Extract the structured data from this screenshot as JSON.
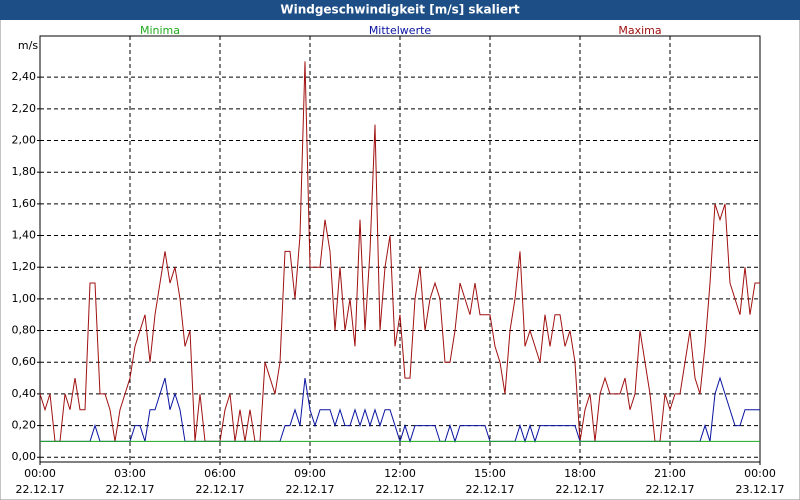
{
  "chart_data": {
    "type": "line",
    "title": "Windgeschwindigkeit [m/s] skaliert",
    "y_label": "m/s",
    "x": [
      0,
      10,
      20,
      30,
      40,
      50,
      60,
      70,
      80,
      90,
      100,
      110,
      120,
      130,
      140,
      150,
      160,
      170,
      180,
      190,
      200,
      210,
      220,
      230,
      240,
      250,
      260,
      270,
      280,
      290,
      300,
      310,
      320,
      330,
      340,
      350,
      360,
      370,
      380,
      390,
      400,
      410,
      420,
      430,
      440,
      450,
      460,
      470,
      480,
      490,
      500,
      510,
      520,
      530,
      540,
      550,
      560,
      570,
      580,
      590,
      600,
      610,
      620,
      630,
      640,
      650,
      660,
      670,
      680,
      690,
      700,
      710,
      720,
      730,
      740,
      750,
      760,
      770,
      780,
      790,
      800,
      810,
      820,
      830,
      840,
      850,
      860,
      870,
      880,
      890,
      900,
      910,
      920,
      930,
      940,
      950,
      960,
      970,
      980,
      990,
      1000,
      1010,
      1020,
      1030,
      1040,
      1050,
      1060,
      1070,
      1080,
      1090,
      1100,
      1110,
      1120,
      1130,
      1140,
      1150,
      1160,
      1170,
      1180,
      1190,
      1200,
      1210,
      1220,
      1230,
      1240,
      1250,
      1260,
      1270,
      1280,
      1290,
      1300,
      1310,
      1320,
      1330,
      1340,
      1350,
      1360,
      1370,
      1380,
      1390,
      1400,
      1410,
      1420,
      1430,
      1440
    ],
    "series": [
      {
        "name": "Minima",
        "color": "#1faa1f",
        "values": [
          0.1,
          0.1,
          0.1,
          0.1,
          0.1,
          0.1,
          0.1,
          0.1,
          0.1,
          0.1,
          0.1,
          0.1,
          0.1,
          0.1,
          0.1,
          0.1,
          0.1,
          0.1,
          0.1,
          0.1,
          0.1,
          0.1,
          0.1,
          0.1,
          0.1,
          0.1,
          0.1,
          0.1,
          0.1,
          0.1,
          0.1,
          0.1,
          0.1,
          0.1,
          0.1,
          0.1,
          0.1,
          0.1,
          0.1,
          0.1,
          0.1,
          0.1,
          0.1,
          0.1,
          0.1,
          0.1,
          0.1,
          0.1,
          0.1,
          0.1,
          0.1,
          0.1,
          0.1,
          0.1,
          0.1,
          0.1,
          0.1,
          0.1,
          0.1,
          0.1,
          0.1,
          0.1,
          0.1,
          0.1,
          0.1,
          0.1,
          0.1,
          0.1,
          0.1,
          0.1,
          0.1,
          0.1,
          0.1,
          0.1,
          0.1,
          0.1,
          0.1,
          0.1,
          0.1,
          0.1,
          0.1,
          0.1,
          0.1,
          0.1,
          0.1,
          0.1,
          0.1,
          0.1,
          0.1,
          0.1,
          0.1,
          0.1,
          0.1,
          0.1,
          0.1,
          0.1,
          0.1,
          0.1,
          0.1,
          0.1,
          0.1,
          0.1,
          0.1,
          0.1,
          0.1,
          0.1,
          0.1,
          0.1,
          0.1,
          0.1,
          0.1,
          0.1,
          0.1,
          0.1,
          0.1,
          0.1,
          0.1,
          0.1,
          0.1,
          0.1,
          0.1,
          0.1,
          0.1,
          0.1,
          0.1,
          0.1,
          0.1,
          0.1,
          0.1,
          0.1,
          0.1,
          0.1,
          0.1,
          0.1,
          0.1,
          0.1,
          0.1,
          0.1,
          0.1,
          0.1,
          0.1,
          0.1,
          0.1,
          0.1,
          0.1
        ]
      },
      {
        "name": "Mittelwerte",
        "color": "#0a14a0",
        "values": [
          0.1,
          0.1,
          0.1,
          0.1,
          0.1,
          0.1,
          0.1,
          0.1,
          0.1,
          0.1,
          0.1,
          0.2,
          0.1,
          0.1,
          0.1,
          0.1,
          0.1,
          0.1,
          0.1,
          0.2,
          0.2,
          0.1,
          0.3,
          0.3,
          0.4,
          0.5,
          0.3,
          0.4,
          0.3,
          0.1,
          0.1,
          0.1,
          0.1,
          0.1,
          0.1,
          0.1,
          0.1,
          0.1,
          0.1,
          0.1,
          0.1,
          0.1,
          0.1,
          0.1,
          0.1,
          0.1,
          0.1,
          0.1,
          0.1,
          0.2,
          0.2,
          0.3,
          0.2,
          0.5,
          0.3,
          0.2,
          0.3,
          0.3,
          0.3,
          0.2,
          0.3,
          0.2,
          0.2,
          0.3,
          0.2,
          0.3,
          0.2,
          0.3,
          0.2,
          0.3,
          0.3,
          0.2,
          0.1,
          0.2,
          0.1,
          0.2,
          0.2,
          0.2,
          0.2,
          0.2,
          0.1,
          0.1,
          0.2,
          0.1,
          0.2,
          0.2,
          0.2,
          0.2,
          0.2,
          0.2,
          0.1,
          0.1,
          0.1,
          0.1,
          0.1,
          0.1,
          0.2,
          0.1,
          0.2,
          0.1,
          0.2,
          0.2,
          0.2,
          0.2,
          0.2,
          0.2,
          0.2,
          0.2,
          0.1,
          0.1,
          0.1,
          0.1,
          0.1,
          0.1,
          0.1,
          0.1,
          0.1,
          0.1,
          0.1,
          0.1,
          0.1,
          0.1,
          0.1,
          0.1,
          0.1,
          0.1,
          0.1,
          0.1,
          0.1,
          0.1,
          0.1,
          0.1,
          0.1,
          0.2,
          0.1,
          0.4,
          0.5,
          0.4,
          0.3,
          0.2,
          0.2,
          0.3,
          0.3,
          0.3,
          0.3
        ]
      },
      {
        "name": "Maxima",
        "color": "#a01010",
        "values": [
          0.4,
          0.3,
          0.4,
          0.1,
          0.1,
          0.4,
          0.3,
          0.5,
          0.3,
          0.3,
          1.1,
          1.1,
          0.4,
          0.4,
          0.3,
          0.1,
          0.3,
          0.4,
          0.5,
          0.7,
          0.8,
          0.9,
          0.6,
          0.9,
          1.1,
          1.3,
          1.1,
          1.2,
          1.0,
          0.7,
          0.8,
          0.1,
          0.4,
          0.1,
          0.1,
          0.1,
          0.1,
          0.3,
          0.4,
          0.1,
          0.3,
          0.1,
          0.3,
          0.1,
          0.1,
          0.6,
          0.5,
          0.4,
          0.6,
          1.3,
          1.3,
          1.0,
          1.4,
          2.5,
          1.2,
          1.2,
          1.2,
          1.5,
          1.3,
          0.8,
          1.2,
          0.8,
          1.0,
          0.7,
          1.5,
          0.8,
          1.3,
          2.1,
          0.8,
          1.2,
          1.4,
          0.7,
          0.9,
          0.5,
          0.5,
          1.0,
          1.2,
          0.8,
          1.0,
          1.1,
          1.0,
          0.6,
          0.6,
          0.8,
          1.1,
          1.0,
          0.9,
          1.1,
          0.9,
          0.9,
          0.9,
          0.7,
          0.6,
          0.4,
          0.8,
          1.0,
          1.3,
          0.7,
          0.8,
          0.7,
          0.6,
          0.9,
          0.7,
          0.9,
          0.9,
          0.7,
          0.8,
          0.6,
          0.1,
          0.3,
          0.4,
          0.1,
          0.4,
          0.5,
          0.4,
          0.4,
          0.4,
          0.5,
          0.3,
          0.4,
          0.8,
          0.6,
          0.4,
          0.1,
          0.1,
          0.4,
          0.3,
          0.4,
          0.4,
          0.6,
          0.8,
          0.5,
          0.4,
          0.7,
          1.1,
          1.6,
          1.5,
          1.6,
          1.1,
          1.0,
          0.9,
          1.2,
          0.9,
          1.1,
          1.1
        ]
      }
    ],
    "xlim": [
      0,
      1440
    ],
    "xticks": [
      {
        "value": 0,
        "label": "00:00",
        "date": "22.12.17"
      },
      {
        "value": 180,
        "label": "03:00",
        "date": "22.12.17"
      },
      {
        "value": 360,
        "label": "06:00",
        "date": "22.12.17"
      },
      {
        "value": 540,
        "label": "09:00",
        "date": "22.12.17"
      },
      {
        "value": 720,
        "label": "12:00",
        "date": "22.12.17"
      },
      {
        "value": 900,
        "label": "15:00",
        "date": "22.12.17"
      },
      {
        "value": 1080,
        "label": "18:00",
        "date": "22.12.17"
      },
      {
        "value": 1260,
        "label": "21:00",
        "date": "22.12.17"
      },
      {
        "value": 1440,
        "label": "00:00",
        "date": "23.12.17"
      }
    ],
    "ylim": [
      -0.03,
      2.66
    ],
    "yticks": [
      {
        "value": 0,
        "label": "0,00"
      },
      {
        "value": 0.2,
        "label": "0,20"
      },
      {
        "value": 0.4,
        "label": "0,40"
      },
      {
        "value": 0.6,
        "label": "0,60"
      },
      {
        "value": 0.8,
        "label": "0,80"
      },
      {
        "value": 1.0,
        "label": "1,00"
      },
      {
        "value": 1.2,
        "label": "1,20"
      },
      {
        "value": 1.4,
        "label": "1,40"
      },
      {
        "value": 1.6,
        "label": "1,60"
      },
      {
        "value": 1.8,
        "label": "1,80"
      },
      {
        "value": 2.0,
        "label": "2,00"
      },
      {
        "value": 2.2,
        "label": "2,20"
      },
      {
        "value": 2.4,
        "label": "2,40"
      }
    ],
    "grid": true
  }
}
